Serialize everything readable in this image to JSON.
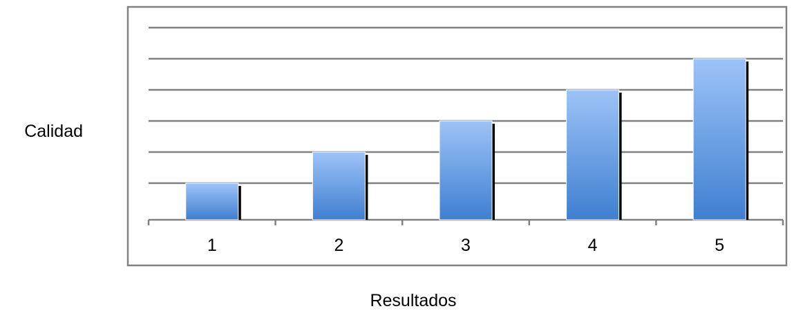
{
  "chart_data": {
    "type": "bar",
    "title": "",
    "xlabel": "Resultados",
    "ylabel": "Calidad",
    "categories": [
      "1",
      "2",
      "3",
      "4",
      "5"
    ],
    "values": [
      1,
      2,
      3,
      4,
      5
    ],
    "ylim": [
      0,
      6
    ],
    "y_gridlines": [
      1,
      2,
      3,
      4,
      5,
      6
    ],
    "y_tick_labels_shown": false,
    "grid": true,
    "legend": "none",
    "bar_color_top": "#9dc3f7",
    "bar_color_bottom": "#3f7fd0",
    "bar_shadow_color": "#000000",
    "gridline_color": "#808080",
    "frame_color": "#808080"
  }
}
